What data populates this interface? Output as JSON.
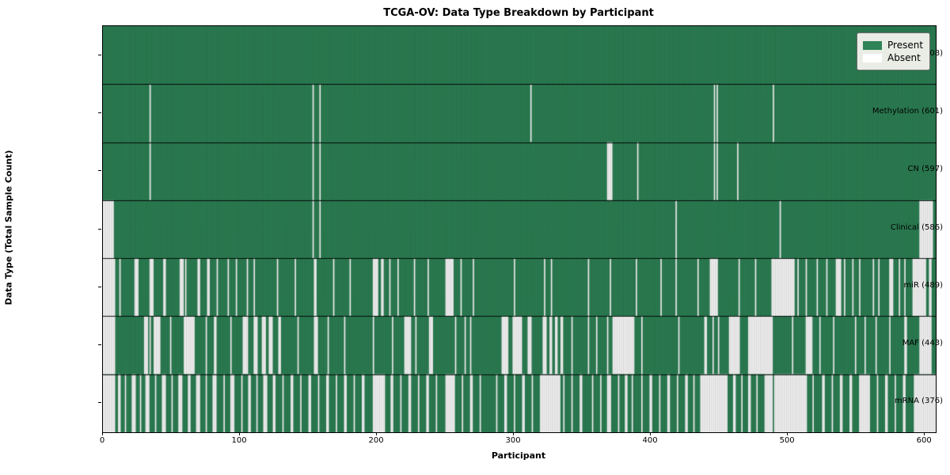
{
  "title": "TCGA-OV: Data Type Breakdown by Participant",
  "xlabel": "Participant",
  "ylabel": "Data Type (Total Sample Count)",
  "legend": {
    "entries": [
      {
        "label": "Present",
        "color": "#2e8457"
      },
      {
        "label": "Absent",
        "color": "#ffffff"
      }
    ]
  },
  "colors": {
    "present": "#2e8457",
    "absent": "#ffffff",
    "cell_edge": "rgba(0,0,0,0.30)",
    "row_separator": "rgba(0,0,0,0.9)"
  },
  "chart_data": {
    "type": "heatmap",
    "title": "TCGA-OV: Data Type Breakdown by Participant",
    "xlabel": "Participant",
    "ylabel": "Data Type (Total Sample Count)",
    "legend_position": "upper right",
    "n_participants": 608,
    "xlim": [
      0,
      608
    ],
    "x_ticks": [
      0,
      100,
      200,
      300,
      400,
      500,
      600
    ],
    "value_legend": {
      "present": "Present",
      "absent": "Absent"
    },
    "rows": [
      {
        "name": "BCR",
        "label": "BCR (608)",
        "present_count": 608,
        "absent_ranges": []
      },
      {
        "name": "Methylation",
        "label": "Methylation (601)",
        "present_count": 601,
        "absent_ranges": [
          [
            34,
            34
          ],
          [
            153,
            153
          ],
          [
            158,
            158
          ],
          [
            312,
            312
          ],
          [
            446,
            446
          ],
          [
            448,
            448
          ],
          [
            489,
            489
          ]
        ]
      },
      {
        "name": "CN",
        "label": "CN (597)",
        "present_count": 597,
        "absent_ranges": [
          [
            34,
            34
          ],
          [
            153,
            153
          ],
          [
            158,
            158
          ],
          [
            368,
            371
          ],
          [
            390,
            390
          ],
          [
            446,
            446
          ],
          [
            448,
            448
          ],
          [
            463,
            463
          ]
        ]
      },
      {
        "name": "Clinical",
        "label": "Clinical (586)",
        "present_count": 586,
        "absent_ranges": [
          [
            0,
            7
          ],
          [
            153,
            153
          ],
          [
            158,
            158
          ],
          [
            418,
            418
          ],
          [
            494,
            494
          ],
          [
            596,
            605
          ]
        ]
      },
      {
        "name": "miR",
        "label": "miR (489)",
        "present_count": 489,
        "absent_ranges": [
          [
            0,
            8
          ],
          [
            12,
            12
          ],
          [
            23,
            25
          ],
          [
            34,
            36
          ],
          [
            44,
            45
          ],
          [
            56,
            58
          ],
          [
            60,
            60
          ],
          [
            69,
            70
          ],
          [
            76,
            77
          ],
          [
            83,
            83
          ],
          [
            91,
            91
          ],
          [
            97,
            97
          ],
          [
            105,
            105
          ],
          [
            110,
            110
          ],
          [
            127,
            127
          ],
          [
            140,
            140
          ],
          [
            154,
            155
          ],
          [
            168,
            168
          ],
          [
            180,
            180
          ],
          [
            197,
            200
          ],
          [
            203,
            204
          ],
          [
            209,
            209
          ],
          [
            215,
            215
          ],
          [
            227,
            227
          ],
          [
            237,
            237
          ],
          [
            250,
            255
          ],
          [
            261,
            261
          ],
          [
            270,
            270
          ],
          [
            300,
            300
          ],
          [
            322,
            322
          ],
          [
            327,
            327
          ],
          [
            354,
            354
          ],
          [
            370,
            370
          ],
          [
            389,
            389
          ],
          [
            407,
            407
          ],
          [
            418,
            418
          ],
          [
            434,
            434
          ],
          [
            443,
            448
          ],
          [
            464,
            464
          ],
          [
            476,
            476
          ],
          [
            488,
            504
          ],
          [
            507,
            507
          ],
          [
            513,
            513
          ],
          [
            521,
            521
          ],
          [
            528,
            528
          ],
          [
            535,
            538
          ],
          [
            541,
            541
          ],
          [
            547,
            547
          ],
          [
            552,
            552
          ],
          [
            562,
            562
          ],
          [
            566,
            566
          ],
          [
            574,
            576
          ],
          [
            581,
            581
          ],
          [
            585,
            585
          ],
          [
            591,
            600
          ],
          [
            603,
            604
          ]
        ]
      },
      {
        "name": "MAF",
        "label": "MAF (443)",
        "present_count": 443,
        "absent_ranges": [
          [
            0,
            8
          ],
          [
            30,
            32
          ],
          [
            34,
            34
          ],
          [
            37,
            41
          ],
          [
            49,
            49
          ],
          [
            59,
            66
          ],
          [
            75,
            75
          ],
          [
            81,
            82
          ],
          [
            93,
            93
          ],
          [
            102,
            105
          ],
          [
            110,
            112
          ],
          [
            116,
            118
          ],
          [
            121,
            123
          ],
          [
            128,
            129
          ],
          [
            142,
            142
          ],
          [
            154,
            156
          ],
          [
            164,
            164
          ],
          [
            176,
            176
          ],
          [
            197,
            197
          ],
          [
            211,
            211
          ],
          [
            220,
            224
          ],
          [
            228,
            228
          ],
          [
            238,
            240
          ],
          [
            257,
            257
          ],
          [
            264,
            264
          ],
          [
            268,
            268
          ],
          [
            291,
            295
          ],
          [
            299,
            305
          ],
          [
            310,
            312
          ],
          [
            321,
            323
          ],
          [
            326,
            327
          ],
          [
            330,
            331
          ],
          [
            334,
            335
          ],
          [
            342,
            342
          ],
          [
            354,
            354
          ],
          [
            360,
            360
          ],
          [
            368,
            368
          ],
          [
            372,
            387
          ],
          [
            393,
            393
          ],
          [
            420,
            420
          ],
          [
            439,
            440
          ],
          [
            445,
            445
          ],
          [
            449,
            449
          ],
          [
            457,
            464
          ],
          [
            471,
            488
          ],
          [
            503,
            503
          ],
          [
            513,
            517
          ],
          [
            523,
            523
          ],
          [
            533,
            533
          ],
          [
            549,
            549
          ],
          [
            556,
            556
          ],
          [
            564,
            564
          ],
          [
            574,
            574
          ],
          [
            585,
            586
          ],
          [
            596,
            604
          ]
        ]
      },
      {
        "name": "mRNA",
        "label": "mRNA (376)",
        "present_count": 376,
        "absent_ranges": [
          [
            0,
            8
          ],
          [
            11,
            12
          ],
          [
            16,
            16
          ],
          [
            21,
            23
          ],
          [
            27,
            27
          ],
          [
            31,
            33
          ],
          [
            38,
            38
          ],
          [
            43,
            45
          ],
          [
            50,
            50
          ],
          [
            55,
            57
          ],
          [
            62,
            63
          ],
          [
            68,
            70
          ],
          [
            75,
            75
          ],
          [
            80,
            82
          ],
          [
            88,
            88
          ],
          [
            93,
            95
          ],
          [
            101,
            101
          ],
          [
            106,
            107
          ],
          [
            112,
            112
          ],
          [
            117,
            119
          ],
          [
            124,
            125
          ],
          [
            131,
            131
          ],
          [
            137,
            138
          ],
          [
            144,
            144
          ],
          [
            150,
            151
          ],
          [
            157,
            157
          ],
          [
            163,
            164
          ],
          [
            170,
            170
          ],
          [
            176,
            177
          ],
          [
            183,
            183
          ],
          [
            189,
            190
          ],
          [
            197,
            205
          ],
          [
            210,
            211
          ],
          [
            217,
            217
          ],
          [
            223,
            224
          ],
          [
            230,
            230
          ],
          [
            236,
            237
          ],
          [
            243,
            243
          ],
          [
            250,
            256
          ],
          [
            262,
            262
          ],
          [
            268,
            269
          ],
          [
            275,
            275
          ],
          [
            287,
            287
          ],
          [
            293,
            294
          ],
          [
            300,
            300
          ],
          [
            306,
            307
          ],
          [
            313,
            313
          ],
          [
            319,
            333
          ],
          [
            336,
            336
          ],
          [
            342,
            342
          ],
          [
            348,
            349
          ],
          [
            357,
            357
          ],
          [
            363,
            363
          ],
          [
            368,
            370
          ],
          [
            376,
            376
          ],
          [
            381,
            382
          ],
          [
            386,
            386
          ],
          [
            393,
            393
          ],
          [
            399,
            400
          ],
          [
            406,
            406
          ],
          [
            412,
            413
          ],
          [
            419,
            419
          ],
          [
            425,
            426
          ],
          [
            431,
            431
          ],
          [
            436,
            455
          ],
          [
            460,
            461
          ],
          [
            466,
            466
          ],
          [
            471,
            472
          ],
          [
            477,
            477
          ],
          [
            483,
            488
          ],
          [
            490,
            513
          ],
          [
            518,
            518
          ],
          [
            525,
            526
          ],
          [
            532,
            532
          ],
          [
            538,
            539
          ],
          [
            545,
            546
          ],
          [
            552,
            559
          ],
          [
            565,
            565
          ],
          [
            571,
            572
          ],
          [
            578,
            578
          ],
          [
            584,
            585
          ],
          [
            592,
            607
          ]
        ]
      }
    ]
  }
}
